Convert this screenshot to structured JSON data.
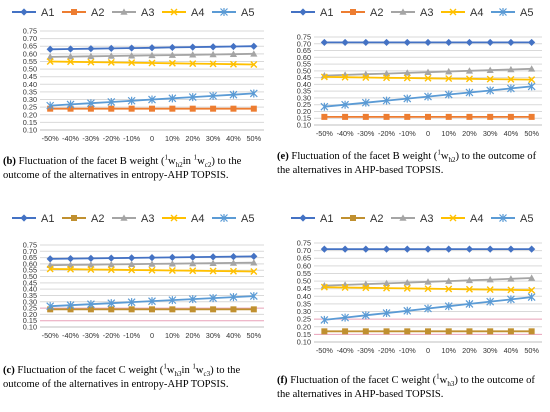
{
  "series_names": [
    "A1",
    "A2",
    "A3",
    "A4",
    "A5"
  ],
  "colors": {
    "A1": "#4472c4",
    "A2": "#ed7d31",
    "A2_alt": "#c09030",
    "A3": "#a5a5a5",
    "A4": "#ffc000",
    "A5": "#5b9bd5",
    "grid": "#d9d9d9",
    "pink_grid": "#e8a0b8"
  },
  "captions": {
    "b": {
      "label": "(b)",
      "pre": "Fluctuation of the facet B weight (",
      "sup1": "1",
      "w1": "w",
      "sub1": "h2",
      "mid": "in ",
      "sup2": "1",
      "w2": "w",
      "sub2": "c2",
      "post": ") to the outcome of the alternatives in entropy-AHP TOPSIS."
    },
    "e": {
      "label": "(e)",
      "pre": "Fluctuation of the facet B weight (",
      "sup1": "1",
      "w1": "w",
      "sub1": "h2",
      "post": ") to the outcome of the alternatives in AHP-based TOPSIS."
    },
    "c": {
      "label": "(c)",
      "pre": "Fluctuation of the facet C weight (",
      "sup1": "1",
      "w1": "w",
      "sub1": "h3",
      "mid": "in ",
      "sup2": "1",
      "w2": "w",
      "sub2": "c3",
      "post": ") to the outcome of the alternatives in entropy-AHP TOPSIS."
    },
    "f": {
      "label": "(f)",
      "pre": "Fluctuation of the facet C weight (",
      "sup1": "1",
      "w1": "w",
      "sub1": "h3",
      "post": ") to the outcome of the alternatives in AHP-based TOPSIS."
    }
  },
  "chart_data": [
    {
      "id": "b",
      "type": "line",
      "x": [
        "-50%",
        "-40%",
        "-30%",
        "-20%",
        "-10%",
        "0",
        "10%",
        "20%",
        "30%",
        "40%",
        "50%"
      ],
      "ylim": [
        0.1,
        0.75
      ],
      "yticks": [
        "0.75",
        "0.70",
        "0.65",
        "0.60",
        "0.55",
        "0.50",
        "0.45",
        "0.40",
        "0.35",
        "0.30",
        "0.25",
        "0.20",
        "0.15",
        "0.10"
      ],
      "grid": true,
      "legend": "top",
      "series": [
        {
          "name": "A1",
          "values": [
            0.63,
            0.632,
            0.634,
            0.636,
            0.638,
            0.64,
            0.642,
            0.644,
            0.646,
            0.648,
            0.65
          ]
        },
        {
          "name": "A2",
          "values": [
            0.24,
            0.24,
            0.24,
            0.24,
            0.24,
            0.24,
            0.24,
            0.24,
            0.24,
            0.24,
            0.24
          ]
        },
        {
          "name": "A3",
          "values": [
            0.58,
            0.582,
            0.584,
            0.586,
            0.588,
            0.59,
            0.592,
            0.594,
            0.596,
            0.598,
            0.6
          ]
        },
        {
          "name": "A4",
          "values": [
            0.55,
            0.548,
            0.546,
            0.544,
            0.542,
            0.54,
            0.538,
            0.536,
            0.534,
            0.532,
            0.53
          ]
        },
        {
          "name": "A5",
          "values": [
            0.26,
            0.268,
            0.276,
            0.284,
            0.292,
            0.3,
            0.308,
            0.316,
            0.324,
            0.332,
            0.34
          ]
        }
      ]
    },
    {
      "id": "e",
      "type": "line",
      "x": [
        "-50%",
        "-40%",
        "-30%",
        "-20%",
        "-10%",
        "0",
        "10%",
        "20%",
        "30%",
        "40%",
        "50%"
      ],
      "ylim": [
        0.1,
        0.75
      ],
      "yticks": [
        "0.75",
        "0.70",
        "0.65",
        "0.60",
        "0.55",
        "0.50",
        "0.45",
        "0.40",
        "0.35",
        "0.30",
        "0.25",
        "0.20",
        "0.15",
        "0.10"
      ],
      "grid": true,
      "legend": "top",
      "series": [
        {
          "name": "A1",
          "values": [
            0.71,
            0.71,
            0.71,
            0.71,
            0.71,
            0.71,
            0.71,
            0.71,
            0.71,
            0.71,
            0.71
          ]
        },
        {
          "name": "A2",
          "values": [
            0.16,
            0.16,
            0.16,
            0.16,
            0.16,
            0.16,
            0.16,
            0.16,
            0.16,
            0.16,
            0.16
          ]
        },
        {
          "name": "A3",
          "values": [
            0.465,
            0.47,
            0.475,
            0.48,
            0.485,
            0.49,
            0.495,
            0.5,
            0.505,
            0.51,
            0.515
          ]
        },
        {
          "name": "A4",
          "values": [
            0.455,
            0.453,
            0.451,
            0.449,
            0.447,
            0.445,
            0.443,
            0.441,
            0.439,
            0.437,
            0.435
          ]
        },
        {
          "name": "A5",
          "values": [
            0.235,
            0.25,
            0.265,
            0.28,
            0.295,
            0.31,
            0.325,
            0.34,
            0.355,
            0.37,
            0.385
          ]
        }
      ]
    },
    {
      "id": "c",
      "type": "line",
      "x": [
        "-50%",
        "-40%",
        "-30%",
        "-20%",
        "-10%",
        "0",
        "10%",
        "20%",
        "30%",
        "40%",
        "50%"
      ],
      "ylim": [
        0.1,
        0.75
      ],
      "yticks": [
        "0.75",
        "0.70",
        "0.65",
        "0.60",
        "0.55",
        "0.50",
        "0.45",
        "0.40",
        "0.35",
        "0.30",
        "0.25",
        "0.20",
        "0.15",
        "0.10"
      ],
      "grid": true,
      "legend": "top",
      "series": [
        {
          "name": "A1",
          "values": [
            0.64,
            0.642,
            0.644,
            0.646,
            0.648,
            0.65,
            0.652,
            0.654,
            0.656,
            0.658,
            0.66
          ]
        },
        {
          "name": "A2",
          "values": [
            0.24,
            0.24,
            0.24,
            0.24,
            0.24,
            0.24,
            0.24,
            0.24,
            0.24,
            0.24,
            0.24
          ]
        },
        {
          "name": "A3",
          "values": [
            0.59,
            0.592,
            0.594,
            0.596,
            0.598,
            0.6,
            0.602,
            0.604,
            0.606,
            0.608,
            0.61
          ]
        },
        {
          "name": "A4",
          "values": [
            0.56,
            0.558,
            0.556,
            0.554,
            0.552,
            0.55,
            0.548,
            0.546,
            0.544,
            0.542,
            0.54
          ]
        },
        {
          "name": "A5",
          "values": [
            0.265,
            0.273,
            0.281,
            0.289,
            0.297,
            0.305,
            0.313,
            0.321,
            0.329,
            0.337,
            0.345
          ]
        }
      ]
    },
    {
      "id": "f",
      "type": "line",
      "x": [
        "-50%",
        "-40%",
        "-30%",
        "-20%",
        "-10%",
        "0",
        "10%",
        "20%",
        "30%",
        "40%",
        "50%"
      ],
      "ylim": [
        0.1,
        0.75
      ],
      "yticks": [
        "0.75",
        "0.70",
        "0.65",
        "0.60",
        "0.55",
        "0.50",
        "0.45",
        "0.40",
        "0.35",
        "0.30",
        "0.25",
        "0.20",
        "0.15",
        "0.10"
      ],
      "grid": true,
      "legend": "top",
      "series": [
        {
          "name": "A1",
          "values": [
            0.71,
            0.71,
            0.71,
            0.71,
            0.71,
            0.71,
            0.71,
            0.71,
            0.71,
            0.71,
            0.71
          ]
        },
        {
          "name": "A2",
          "values": [
            0.17,
            0.17,
            0.17,
            0.17,
            0.17,
            0.17,
            0.17,
            0.17,
            0.17,
            0.17,
            0.17
          ]
        },
        {
          "name": "A3",
          "values": [
            0.47,
            0.475,
            0.48,
            0.485,
            0.49,
            0.495,
            0.5,
            0.505,
            0.51,
            0.515,
            0.52
          ]
        },
        {
          "name": "A4",
          "values": [
            0.46,
            0.458,
            0.456,
            0.454,
            0.452,
            0.45,
            0.448,
            0.446,
            0.444,
            0.442,
            0.44
          ]
        },
        {
          "name": "A5",
          "values": [
            0.245,
            0.26,
            0.275,
            0.29,
            0.305,
            0.32,
            0.335,
            0.35,
            0.365,
            0.38,
            0.395
          ]
        }
      ]
    }
  ]
}
